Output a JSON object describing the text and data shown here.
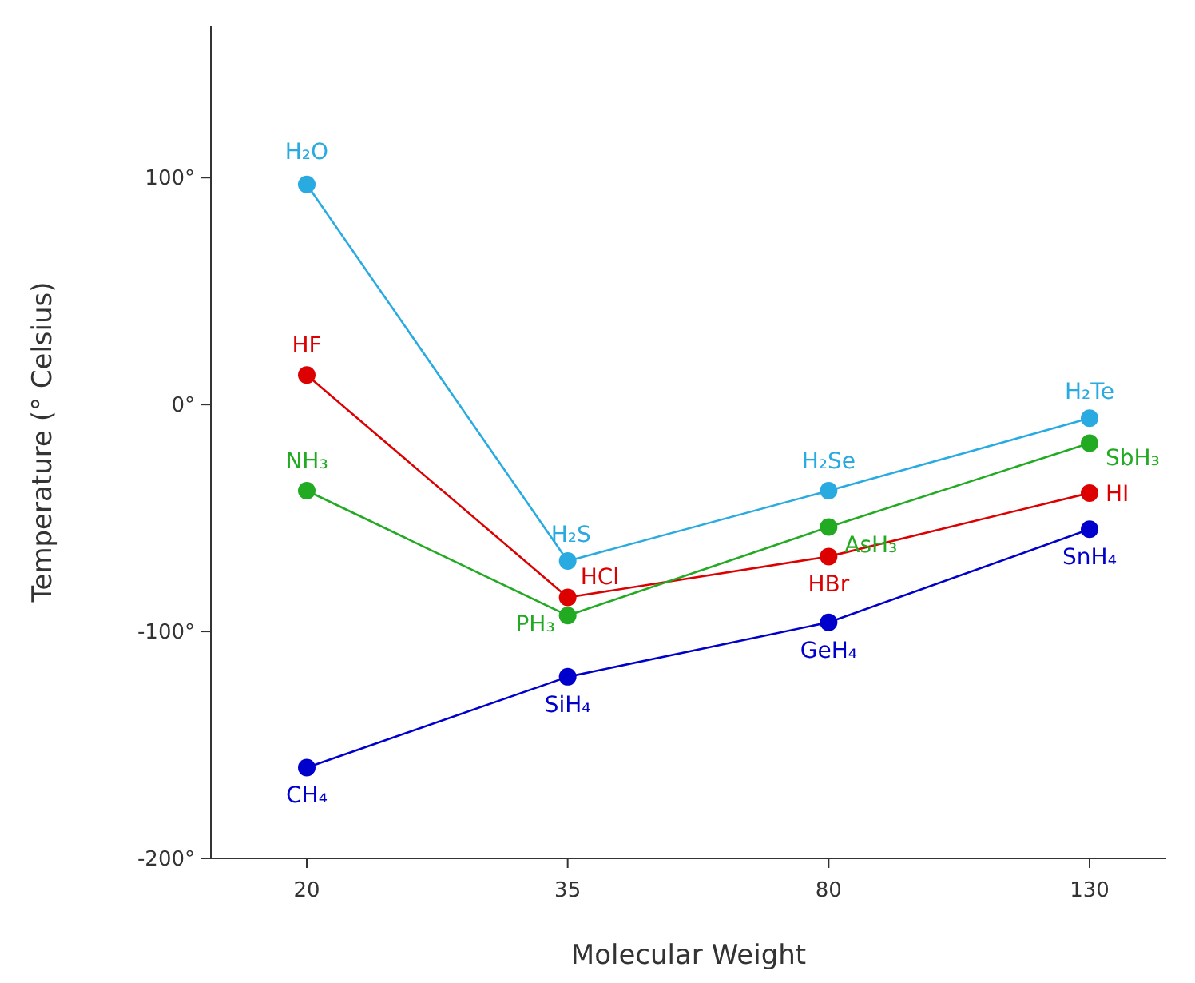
{
  "chart_data": {
    "type": "line",
    "xlabel": "Molecular Weight",
    "ylabel": "Temperature (° Celsius)",
    "categories": [
      "20",
      "35",
      "80",
      "130"
    ],
    "ylim": [
      -200,
      167
    ],
    "yticks": [
      {
        "value": -200,
        "label": "-200°"
      },
      {
        "value": -100,
        "label": "-100°"
      },
      {
        "value": 0,
        "label": "0°"
      },
      {
        "value": 100,
        "label": "100°"
      }
    ],
    "marker": "circle",
    "line_style": "solid",
    "series": [
      {
        "color": "#29abe2",
        "values": [
          97,
          -69,
          -38,
          -6
        ]
      },
      {
        "color": "#dd0000",
        "values": [
          13,
          -85,
          -67,
          -39
        ]
      },
      {
        "color": "#22aa22",
        "values": [
          -38,
          -93,
          -54,
          -17
        ]
      },
      {
        "color": "#0000cc",
        "values": [
          -160,
          -120,
          -96,
          -55
        ]
      }
    ],
    "annotations": [
      {
        "text": "H₂O",
        "x": "20",
        "y": 97
      },
      {
        "text": "H₂S",
        "x": "35",
        "y": -69
      },
      {
        "text": "H₂Se",
        "x": "80",
        "y": -38
      },
      {
        "text": "H₂Te",
        "x": "130",
        "y": -6
      },
      {
        "text": "HF",
        "x": "20",
        "y": 13
      },
      {
        "text": "HCl",
        "x": "35",
        "y": -85
      },
      {
        "text": "HBr",
        "x": "80",
        "y": -67
      },
      {
        "text": "HI",
        "x": "130",
        "y": -39
      },
      {
        "text": "NH₃",
        "x": "20",
        "y": -38
      },
      {
        "text": "PH₃",
        "x": "35",
        "y": -93
      },
      {
        "text": "AsH₃",
        "x": "80",
        "y": -54
      },
      {
        "text": "SbH₃",
        "x": "130",
        "y": -17
      },
      {
        "text": "CH₄",
        "x": "20",
        "y": -160
      },
      {
        "text": "SiH₄",
        "x": "35",
        "y": -120
      },
      {
        "text": "GeH₄",
        "x": "80",
        "y": -96
      },
      {
        "text": "SnH₄",
        "x": "130",
        "y": -55
      }
    ]
  }
}
